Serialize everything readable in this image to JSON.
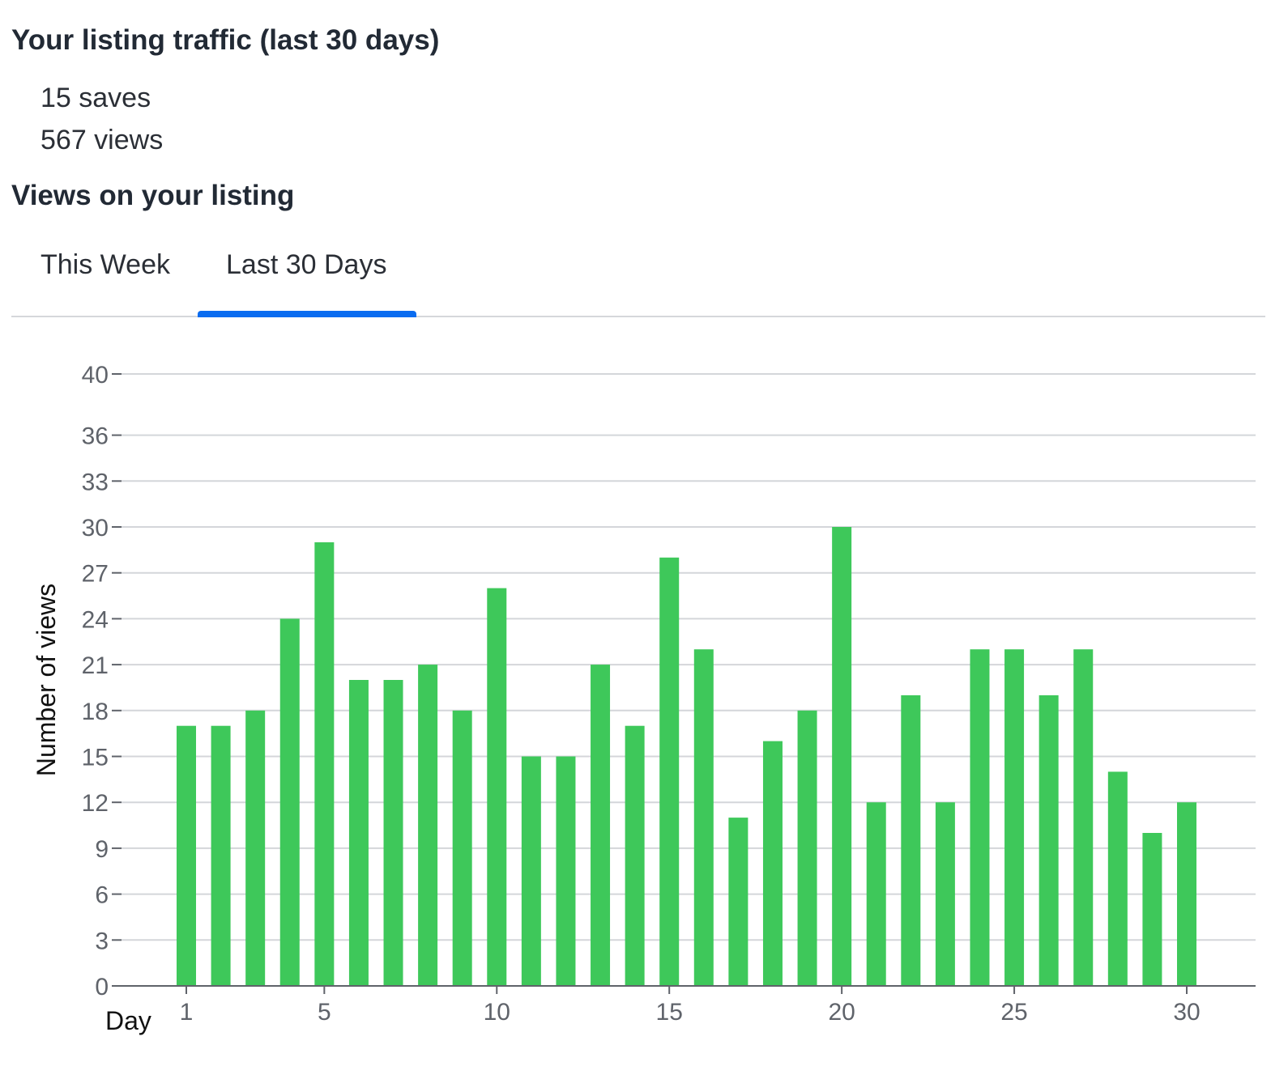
{
  "header": {
    "title": "Your listing traffic (last 30 days)",
    "saves": "15 saves",
    "views": "567 views"
  },
  "section": {
    "title": "Views on your listing"
  },
  "tabs": {
    "items": [
      {
        "label": "This Week",
        "selected": false
      },
      {
        "label": "Last 30 Days",
        "selected": true
      }
    ],
    "accent_color": "#0a6cf0"
  },
  "chart_data": {
    "type": "bar",
    "xlabel": "Day",
    "ylabel": "Number of views",
    "x": [
      1,
      2,
      3,
      4,
      5,
      6,
      7,
      8,
      9,
      10,
      11,
      12,
      13,
      14,
      15,
      16,
      17,
      18,
      19,
      20,
      21,
      22,
      23,
      24,
      25,
      26,
      27,
      28,
      29,
      30
    ],
    "values": [
      17,
      17,
      18,
      24,
      29,
      20,
      20,
      21,
      18,
      26,
      15,
      15,
      21,
      17,
      28,
      22,
      11,
      16,
      18,
      30,
      12,
      19,
      12,
      22,
      22,
      19,
      22,
      14,
      10,
      12
    ],
    "xticks": [
      1,
      5,
      10,
      15,
      20,
      25,
      30
    ],
    "yticks": [
      0,
      3,
      6,
      9,
      12,
      15,
      18,
      21,
      24,
      27,
      30,
      33,
      36,
      40
    ],
    "ylim": [
      0,
      40
    ],
    "grid": true,
    "bar_color": "#3ec85a",
    "grid_color": "#d4d6da"
  }
}
